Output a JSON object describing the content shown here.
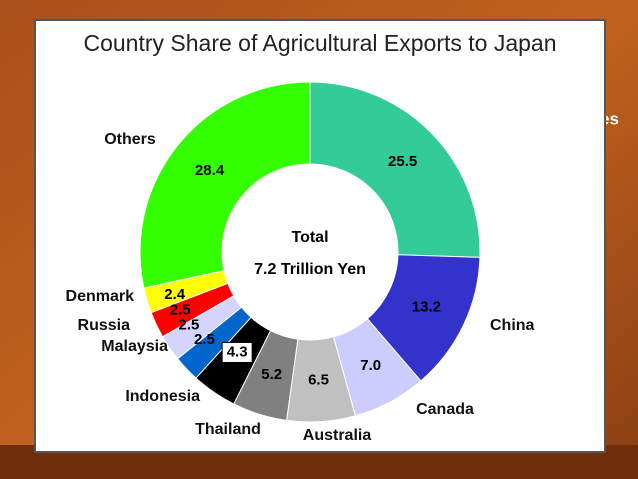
{
  "slide_fragment": "es",
  "chart_data": {
    "type": "donut",
    "title": "Country Share of Agricultural Exports to Japan",
    "center_text": [
      "Total",
      "7.2 Trillion Yen"
    ],
    "categories": [
      null,
      "China",
      "Canada",
      "Australia",
      "Thailand",
      null,
      "Indonesia",
      "Malaysia",
      "Russia",
      "Denmark",
      "Others"
    ],
    "values": [
      25.5,
      13.2,
      7.0,
      6.5,
      5.2,
      4.3,
      2.5,
      2.5,
      2.5,
      2.4,
      28.4
    ],
    "value_labels": [
      "25.5",
      "13.2",
      "7.0",
      "6.5",
      "5.2",
      "4.3",
      "2.5",
      "2.5",
      "2.5",
      "2.4",
      "28.4"
    ],
    "colors": [
      "#33cc99",
      "#3333cc",
      "#ccccff",
      "#c0c0c0",
      "#808080",
      "#000000",
      "#0066cc",
      "#d4d4ff",
      "#ff0000",
      "#ffff00",
      "#33ff00"
    ]
  }
}
